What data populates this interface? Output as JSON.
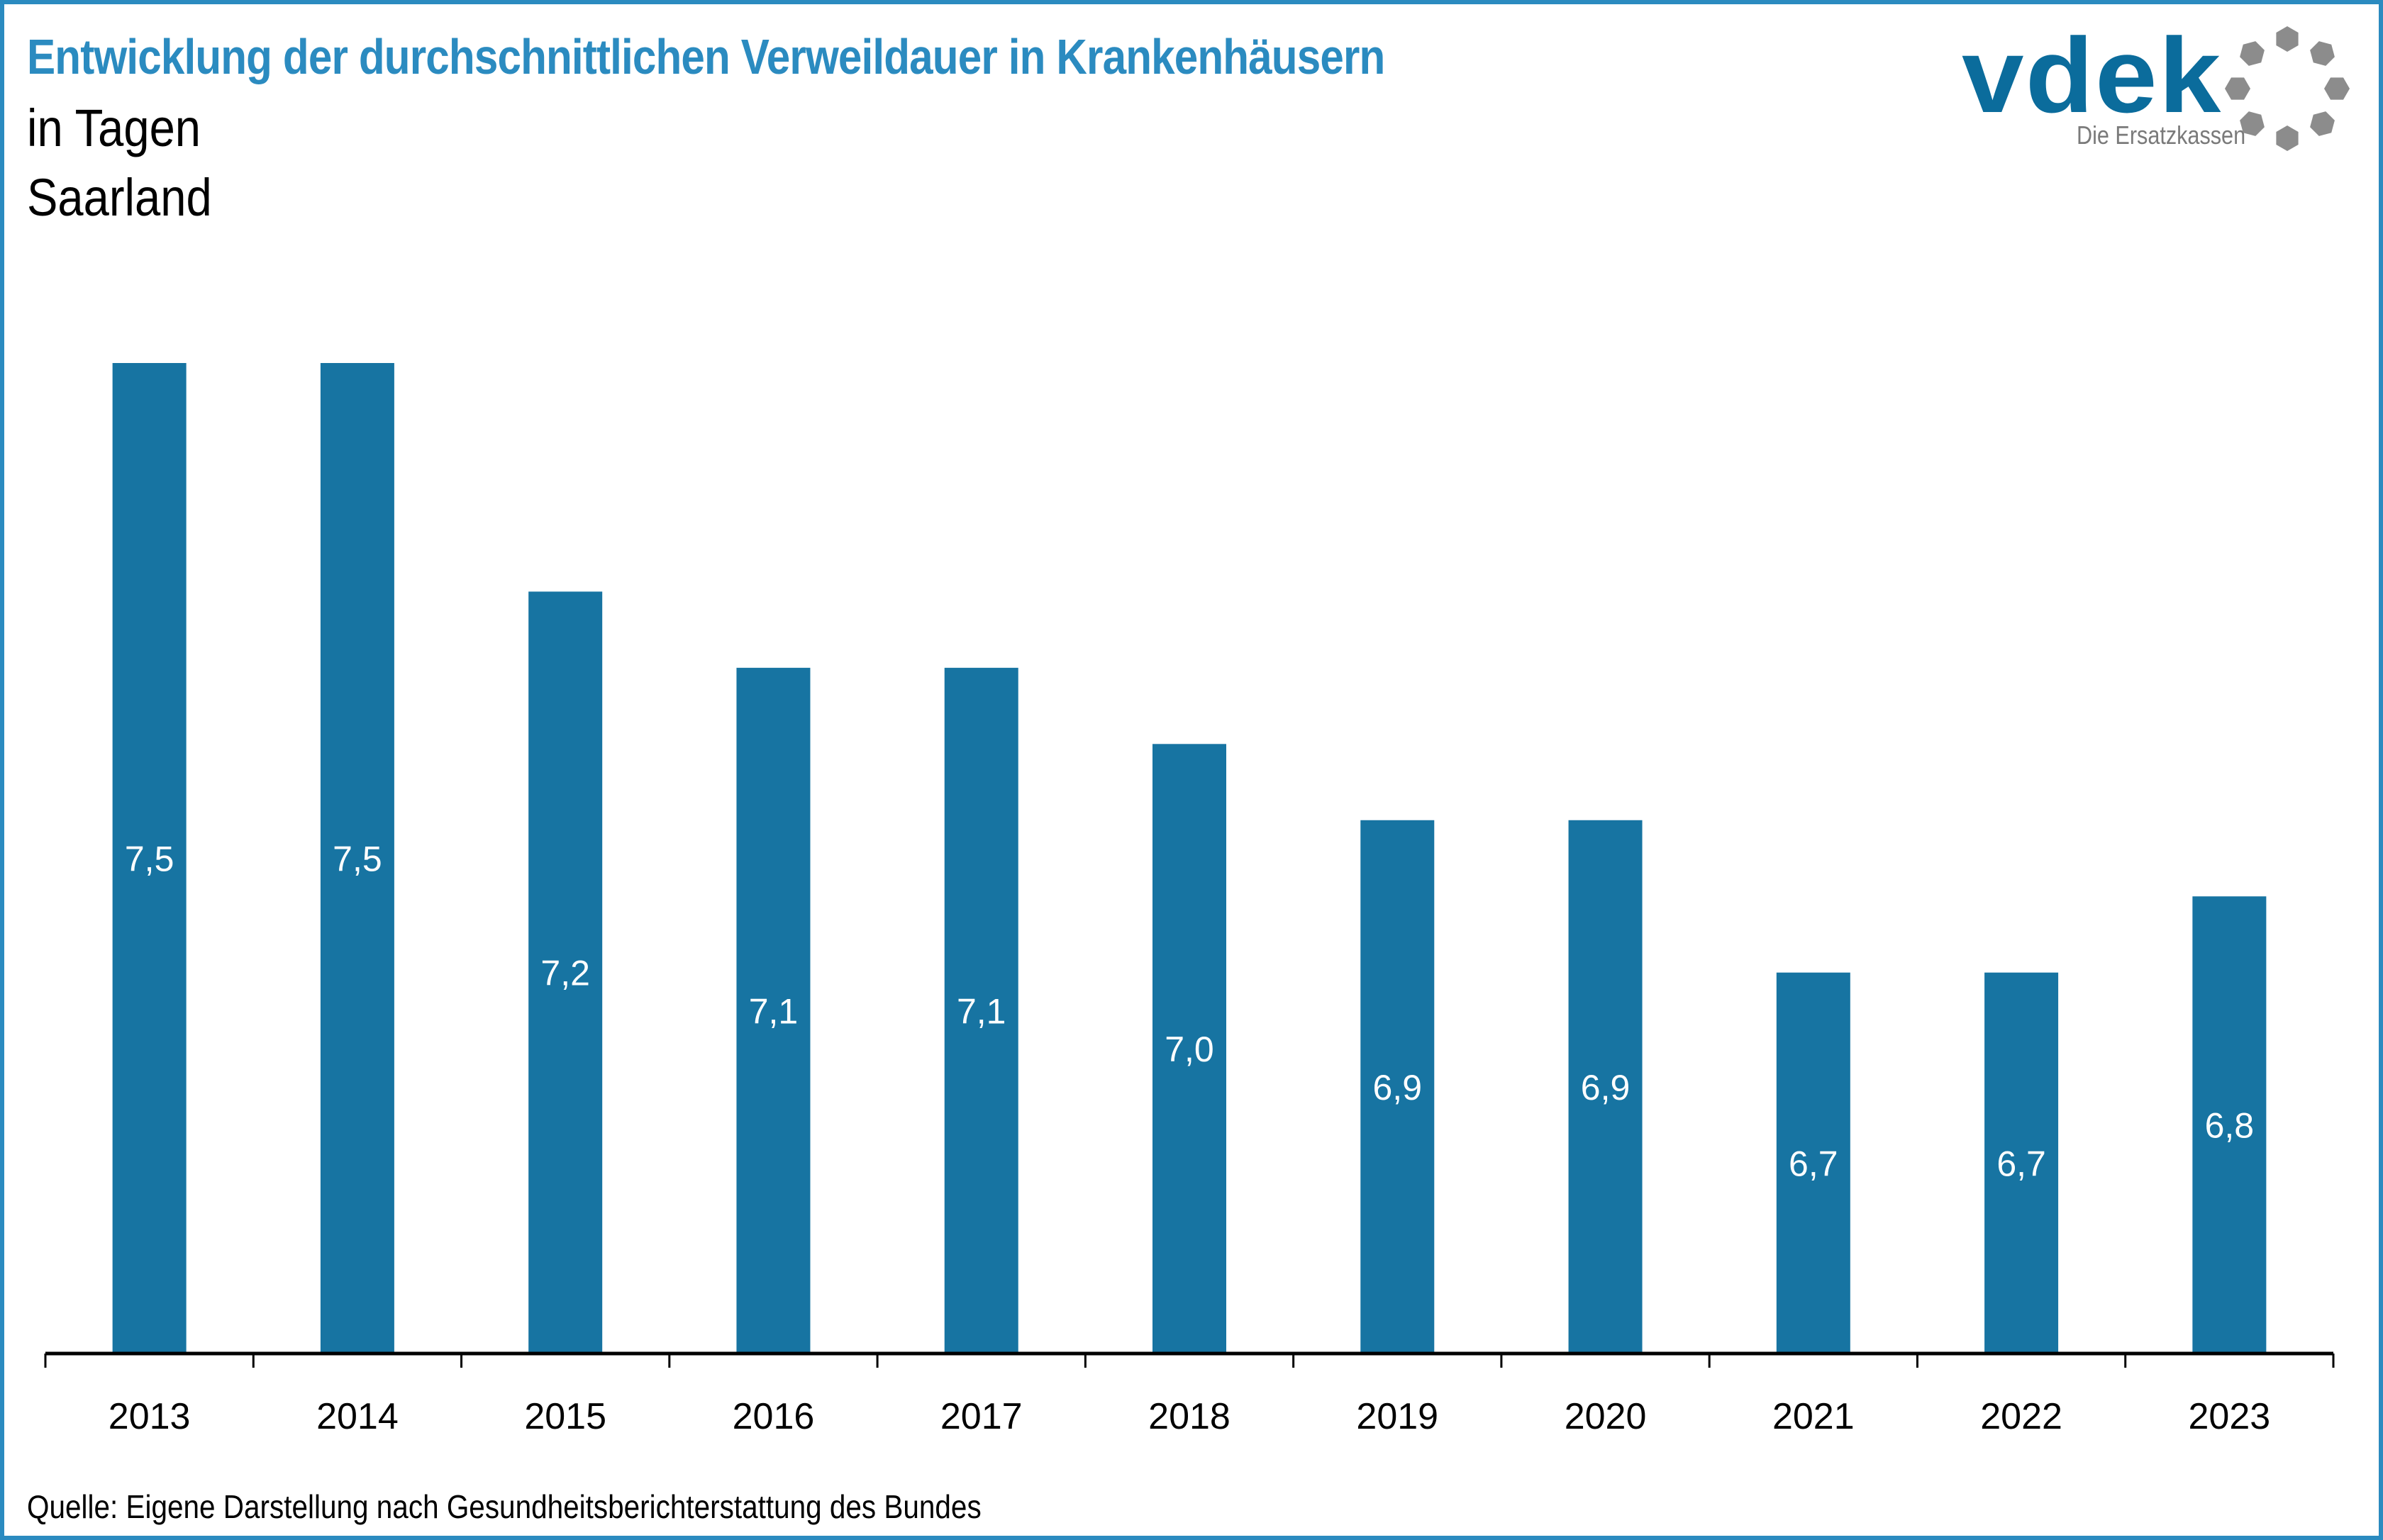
{
  "header": {
    "title": "Entwicklung der durchschnittlichen Verweildauer in Krankenhäusern",
    "subtitle_unit": "in Tagen",
    "subtitle_region": "Saarland"
  },
  "logo": {
    "wordmark": "vdek",
    "tagline": "Die Ersatzkassen",
    "icon": "dot-ring-icon"
  },
  "colors": {
    "frame": "#2B8BC0",
    "title": "#2B8BC0",
    "bar": "#1774A2",
    "logo_primary": "#0B6C9C",
    "logo_secondary": "#8C8C8C",
    "value_label": "#FFFFFF",
    "axis": "#000000"
  },
  "chart_data": {
    "type": "bar",
    "title": "Entwicklung der durchschnittlichen Verweildauer in Krankenhäusern",
    "subtitle": "in Tagen – Saarland",
    "xlabel": "",
    "ylabel": "",
    "categories": [
      "2013",
      "2014",
      "2015",
      "2016",
      "2017",
      "2018",
      "2019",
      "2020",
      "2021",
      "2022",
      "2023"
    ],
    "values": [
      7.5,
      7.5,
      7.2,
      7.1,
      7.1,
      7.0,
      6.9,
      6.9,
      6.7,
      6.7,
      6.8
    ],
    "value_labels": [
      "7,5",
      "7,5",
      "7,2",
      "7,1",
      "7,1",
      "7,0",
      "6,9",
      "6,9",
      "6,7",
      "6,7",
      "6,8"
    ],
    "ylim": [
      6.2,
      7.5
    ],
    "grid": false,
    "y_axis_visible": false,
    "legend": "none",
    "data_labels": "inside-bar-middle"
  },
  "footer": {
    "source": "Quelle: Eigene Darstellung nach Gesundheitsberichterstattung des Bundes"
  }
}
